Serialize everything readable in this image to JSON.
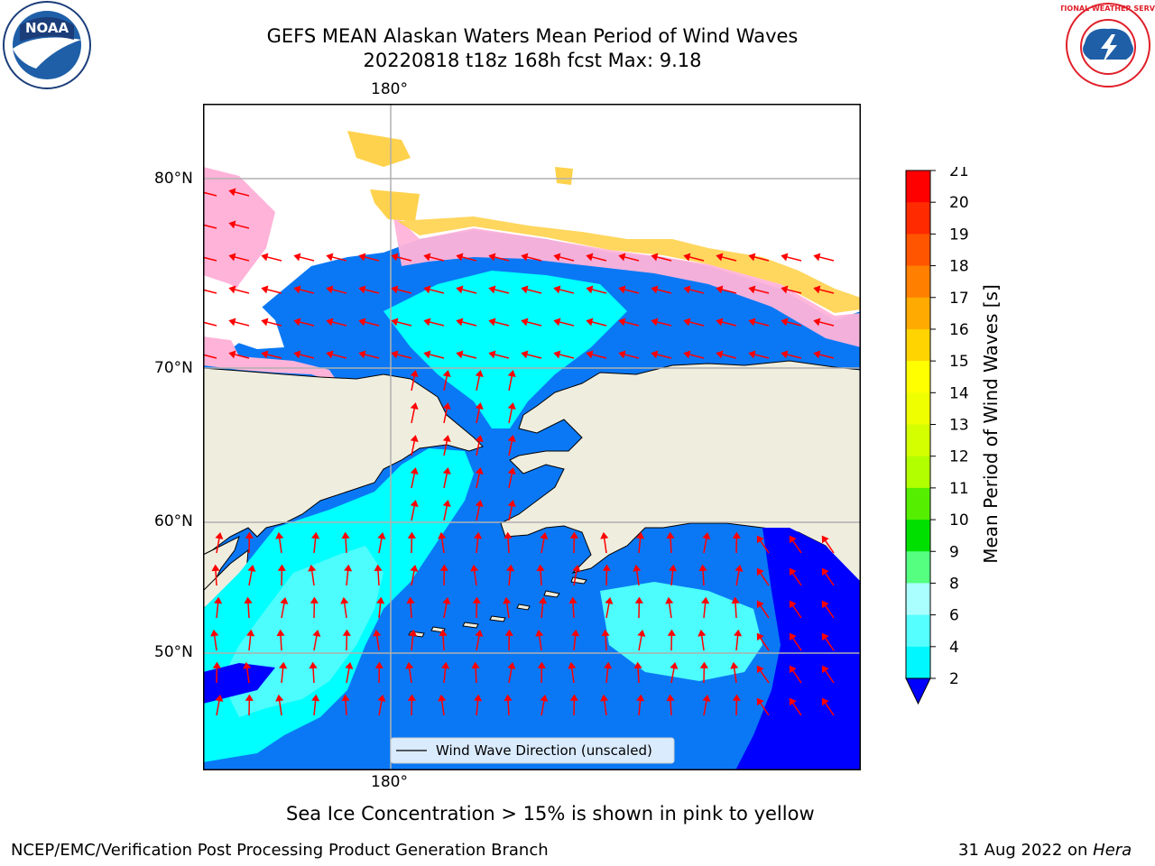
{
  "title": {
    "line1": "GEFS MEAN Alaskan Waters Mean Period of Wind Waves",
    "line2": "20220818 t18z 168h fcst   Max: 9.18"
  },
  "map": {
    "lon_label_top": "180°",
    "lon_label_bottom": "180°",
    "lat_labels": [
      "80°N",
      "70°N",
      "60°N",
      "50°N"
    ],
    "legend_text": "Wind Wave Direction (unscaled)",
    "colors": {
      "land": "#efedde",
      "ocean_deep": "#0000ff",
      "ocean_mid": "#0a78f5",
      "ocean_light": "#00ffff",
      "ocean_pale": "#4dfcfc",
      "arrow": "#ff0000"
    }
  },
  "colorbar": {
    "label": "Mean Period of Wind Waves [s]",
    "ticks": [
      "21",
      "20",
      "19",
      "18",
      "17",
      "16",
      "15",
      "14",
      "13",
      "12",
      "11",
      "10",
      "9",
      "8",
      "6",
      "4",
      "2"
    ],
    "colors": [
      "#ff0000",
      "#ff2a00",
      "#ff5500",
      "#ff7f00",
      "#ffaa00",
      "#ffd400",
      "#ffff00",
      "#f0ff00",
      "#d4ff00",
      "#b2ff00",
      "#55ee00",
      "#00e000",
      "#55ff80",
      "#aaffff",
      "#55ffff",
      "#00f7ff",
      "#0a78f5"
    ],
    "under_color": "#0000ff"
  },
  "notes": {
    "sea_ice": "Sea Ice Concentration > 15% is shown in pink to yellow"
  },
  "footer": {
    "left": "NCEP/EMC/Verification Post Processing Product Generation Branch",
    "right_date": "31 Aug 2022 on ",
    "right_system": "Hera"
  },
  "logos": {
    "noaa": {
      "text": "NOAA",
      "icon": "noaa-logo"
    },
    "nws": {
      "text": "NATIONAL WEATHER SERVICE",
      "icon": "nws-logo"
    }
  }
}
